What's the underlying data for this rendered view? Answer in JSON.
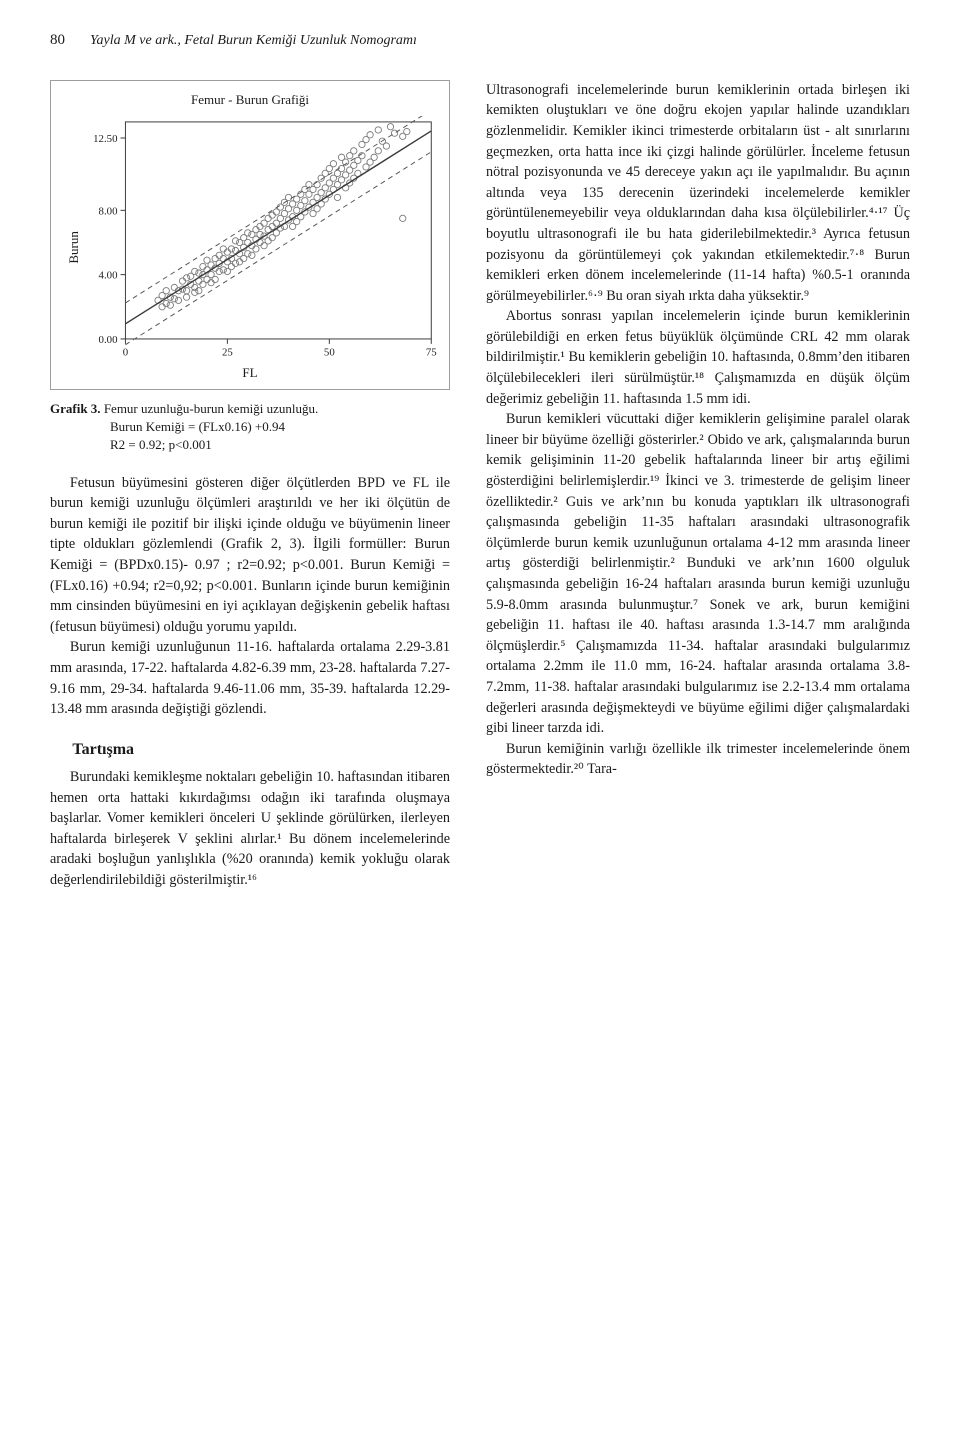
{
  "page_number": "80",
  "running_head": "Yayla M ve ark., Fetal Burun Kemiği Uzunluk Nomogramı",
  "chart": {
    "type": "scatter",
    "title": "Femur - Burun Grafiği",
    "xlabel": "FL",
    "ylabel": "Burun",
    "xlim": [
      0,
      75
    ],
    "ylim": [
      0,
      13.5
    ],
    "xticks": [
      0,
      25,
      50,
      75
    ],
    "yticks": [
      0.0,
      4.0,
      8.0,
      12.5
    ],
    "ytick_labels": [
      "0.00",
      "4.00",
      "8.00",
      "12.50"
    ],
    "marker_size": 3.2,
    "marker_stroke": "#7a7a7a",
    "marker_fill": "none",
    "line_color": "#3a3a3a",
    "line_width": 1.4,
    "dash_color": "#555555",
    "dash_width": 1,
    "axis_color": "#3a3a3a",
    "grid_color": "#dddddd",
    "background_color": "#ffffff",
    "fit_intercept": 0.94,
    "fit_slope": 0.16,
    "fit_r2": 0.92,
    "points": [
      [
        8,
        2.4
      ],
      [
        9,
        2.0
      ],
      [
        9,
        2.7
      ],
      [
        10,
        2.2
      ],
      [
        10,
        3.0
      ],
      [
        11,
        2.6
      ],
      [
        11,
        2.1
      ],
      [
        12,
        3.2
      ],
      [
        12,
        2.5
      ],
      [
        13,
        3.0
      ],
      [
        13,
        2.4
      ],
      [
        14,
        3.1
      ],
      [
        14,
        3.6
      ],
      [
        15,
        3.0
      ],
      [
        15,
        3.8
      ],
      [
        15,
        2.6
      ],
      [
        16,
        3.4
      ],
      [
        16,
        3.9
      ],
      [
        17,
        3.2
      ],
      [
        17,
        4.2
      ],
      [
        17,
        2.9
      ],
      [
        18,
        3.6
      ],
      [
        18,
        4.1
      ],
      [
        18,
        3.0
      ],
      [
        19,
        4.0
      ],
      [
        19,
        3.4
      ],
      [
        19,
        4.5
      ],
      [
        20,
        4.3
      ],
      [
        20,
        3.7
      ],
      [
        20,
        4.9
      ],
      [
        21,
        4.0
      ],
      [
        21,
        4.6
      ],
      [
        21,
        3.5
      ],
      [
        22,
        4.4
      ],
      [
        22,
        5.0
      ],
      [
        22,
        3.7
      ],
      [
        23,
        4.2
      ],
      [
        23,
        5.2
      ],
      [
        23,
        4.7
      ],
      [
        24,
        5.0
      ],
      [
        24,
        4.3
      ],
      [
        24,
        5.6
      ],
      [
        25,
        4.8
      ],
      [
        25,
        5.4
      ],
      [
        25,
        4.2
      ],
      [
        26,
        5.0
      ],
      [
        26,
        5.6
      ],
      [
        26,
        4.5
      ],
      [
        27,
        5.5
      ],
      [
        27,
        4.7
      ],
      [
        27,
        6.1
      ],
      [
        28,
        5.3
      ],
      [
        28,
        6.0
      ],
      [
        28,
        4.8
      ],
      [
        29,
        5.7
      ],
      [
        29,
        6.3
      ],
      [
        29,
        5.0
      ],
      [
        30,
        6.0
      ],
      [
        30,
        5.3
      ],
      [
        30,
        6.6
      ],
      [
        31,
        5.8
      ],
      [
        31,
        6.5
      ],
      [
        31,
        5.2
      ],
      [
        32,
        6.2
      ],
      [
        32,
        6.8
      ],
      [
        32,
        5.6
      ],
      [
        33,
        6.0
      ],
      [
        33,
        7.0
      ],
      [
        33,
        6.5
      ],
      [
        34,
        6.4
      ],
      [
        34,
        7.2
      ],
      [
        34,
        5.8
      ],
      [
        35,
        6.8
      ],
      [
        35,
        6.1
      ],
      [
        35,
        7.5
      ],
      [
        36,
        7.0
      ],
      [
        36,
        6.3
      ],
      [
        36,
        7.7
      ],
      [
        37,
        7.2
      ],
      [
        37,
        6.6
      ],
      [
        37,
        7.9
      ],
      [
        38,
        7.5
      ],
      [
        38,
        6.9
      ],
      [
        38,
        8.2
      ],
      [
        39,
        7.0
      ],
      [
        39,
        7.8
      ],
      [
        39,
        8.5
      ],
      [
        40,
        7.4
      ],
      [
        40,
        8.1
      ],
      [
        40,
        8.8
      ],
      [
        41,
        7.6
      ],
      [
        41,
        8.4
      ],
      [
        41,
        7.0
      ],
      [
        42,
        8.0
      ],
      [
        42,
        8.7
      ],
      [
        42,
        7.3
      ],
      [
        43,
        8.3
      ],
      [
        43,
        9.0
      ],
      [
        43,
        7.6
      ],
      [
        44,
        8.6
      ],
      [
        44,
        7.9
      ],
      [
        44,
        9.3
      ],
      [
        45,
        8.2
      ],
      [
        45,
        9.0
      ],
      [
        45,
        9.6
      ],
      [
        46,
        8.5
      ],
      [
        46,
        9.3
      ],
      [
        46,
        7.8
      ],
      [
        47,
        8.8
      ],
      [
        47,
        9.6
      ],
      [
        47,
        8.1
      ],
      [
        48,
        9.1
      ],
      [
        48,
        8.4
      ],
      [
        48,
        10.0
      ],
      [
        49,
        9.4
      ],
      [
        49,
        8.7
      ],
      [
        49,
        10.3
      ],
      [
        50,
        9.7
      ],
      [
        50,
        9.0
      ],
      [
        50,
        10.6
      ],
      [
        51,
        9.3
      ],
      [
        51,
        10.0
      ],
      [
        51,
        10.9
      ],
      [
        52,
        9.6
      ],
      [
        52,
        10.3
      ],
      [
        52,
        8.8
      ],
      [
        53,
        10.6
      ],
      [
        53,
        9.9
      ],
      [
        53,
        11.3
      ],
      [
        54,
        10.2
      ],
      [
        54,
        11.0
      ],
      [
        54,
        9.4
      ],
      [
        55,
        10.5
      ],
      [
        55,
        11.4
      ],
      [
        55,
        9.7
      ],
      [
        56,
        10.8
      ],
      [
        56,
        11.7
      ],
      [
        56,
        10.0
      ],
      [
        57,
        11.1
      ],
      [
        57,
        10.3
      ],
      [
        58,
        11.4
      ],
      [
        58,
        12.1
      ],
      [
        59,
        10.7
      ],
      [
        59,
        12.4
      ],
      [
        60,
        12.7
      ],
      [
        60,
        11.0
      ],
      [
        61,
        11.3
      ],
      [
        62,
        13.0
      ],
      [
        62,
        11.7
      ],
      [
        63,
        12.3
      ],
      [
        64,
        12.0
      ],
      [
        65,
        13.2
      ],
      [
        66,
        12.8
      ],
      [
        68,
        12.6
      ],
      [
        68,
        7.5
      ],
      [
        69,
        12.9
      ]
    ]
  },
  "caption": {
    "lead": "Grafik 3.",
    "l1": "Femur uzunluğu-burun kemiği uzunluğu.",
    "l2": "Burun Kemiği = (FLx0.16) +0.94",
    "l3": "R2 = 0.92; p<0.001"
  },
  "left_paras": [
    "Fetusun büyümesini gösteren diğer ölçütlerden BPD ve FL ile burun kemiği uzunluğu ölçümleri araştırıldı ve her iki ölçütün de burun kemiği ile pozitif bir ilişki içinde olduğu ve büyümenin lineer tipte oldukları gözlemlendi (Grafik 2, 3). İlgili formüller: Burun Kemiği = (BPDx0.15)- 0.97 ; r2=0.92; p<0.001. Burun Kemiği = (FLx0.16) +0.94; r2=0,92; p<0.001. Bunların içinde burun kemiğinin mm cinsinden büyümesini en iyi açıklayan değişkenin gebelik haftası (fetusun büyümesi) olduğu yorumu yapıldı.",
    "Burun kemiği uzunluğunun 11-16. haftalarda ortalama 2.29-3.81 mm arasında, 17-22. haftalarda 4.82-6.39 mm, 23-28. haftalarda 7.27-9.16 mm, 29-34. haftalarda 9.46-11.06 mm, 35-39. haftalarda 12.29-13.48 mm arasında değiştiği gözlendi."
  ],
  "left_heading": "Tartışma",
  "left_paras2": [
    "Burundaki kemikleşme noktaları gebeliğin 10. haftasından itibaren hemen orta hattaki kıkırdağımsı odağın iki tarafında oluşmaya başlarlar. Vomer kemikleri önceleri U şeklinde görülürken, ilerleyen haftalarda birleşerek V şeklini alırlar.¹ Bu dönem incelemelerinde aradaki boşluğun yanlışlıkla (%20 oranında) kemik yokluğu olarak değerlendirilebildiği gösterilmiştir.¹⁶"
  ],
  "right_paras": [
    "Ultrasonografi incelemelerinde burun kemiklerinin ortada birleşen iki kemikten oluştukları ve öne doğru ekojen yapılar halinde uzandıkları gözlenmelidir. Kemikler ikinci trimesterde orbitaların üst - alt sınırlarını geçmezken, orta hatta ince iki çizgi halinde görülürler. İnceleme fetusun nötral pozisyonunda ve 45 dereceye yakın açı ile yapılmalıdır. Bu açının altında veya 135 derecenin üzerindeki incelemelerde kemikler görüntülenemeyebilir veya olduklarından daha kısa ölçülebilirler.⁴·¹⁷ Üç boyutlu ultrasonografi ile bu hata giderilebilmektedir.³ Ayrıca fetusun pozisyonu da görüntülemeyi çok yakından etkilemektedir.⁷·⁸ Burun kemikleri erken dönem incelemelerinde (11-14 hafta) %0.5-1 oranında görülmeyebilirler.⁶·⁹ Bu oran siyah ırkta daha yüksektir.⁹",
    "Abortus sonrası yapılan incelemelerin içinde burun kemiklerinin görülebildiği en erken fetus büyüklük ölçümünde CRL 42 mm olarak bildirilmiştir.¹ Bu kemiklerin gebeliğin 10. haftasında, 0.8mm’den itibaren ölçülebilecekleri ileri sürülmüştür.¹⁸ Çalışmamızda en düşük ölçüm değerimiz gebeliğin 11. haftasında 1.5 mm idi.",
    "Burun kemikleri vücuttaki diğer kemiklerin gelişimine paralel olarak lineer bir büyüme özelliği gösterirler.² Obido ve ark, çalışmalarında burun kemik gelişiminin 11-20 gebelik haftalarında lineer bir artış eğilimi gösterdiğini belirlemişlerdir.¹⁹ İkinci ve 3. trimesterde de gelişim lineer özelliktedir.² Guis ve ark’nın bu konuda yaptıkları ilk ultrasonografi çalışmasında gebeliğin 11-35 haftaları arasındaki ultrasonografik ölçümlerde burun kemik uzunluğunun ortalama 4-12 mm arasında lineer artış gösterdiği belirlenmiştir.² Bunduki ve ark’nın 1600 olguluk çalışmasında gebeliğin 16-24 haftaları arasında burun kemiği uzunluğu 5.9-8.0mm arasında bulunmuştur.⁷ Sonek ve ark, burun kemiğini gebeliğin 11. haftası ile 40. haftası arasında 1.3-14.7 mm aralığında ölçmüşlerdir.⁵ Çalışmamızda 11-34. haftalar arasındaki bulgularımız ortalama 2.2mm ile 11.0 mm, 16-24. haftalar arasında ortalama 3.8-7.2mm, 11-38. haftalar arasındaki bulgularımız ise 2.2-13.4 mm ortalama değerleri arasında değişmekteydi ve büyüme eğilimi diğer çalışmalardaki gibi lineer tarzda idi.",
    "Burun kemiğinin varlığı özellikle ilk trimester incelemelerinde önem göstermektedir.²⁰ Tara-"
  ]
}
